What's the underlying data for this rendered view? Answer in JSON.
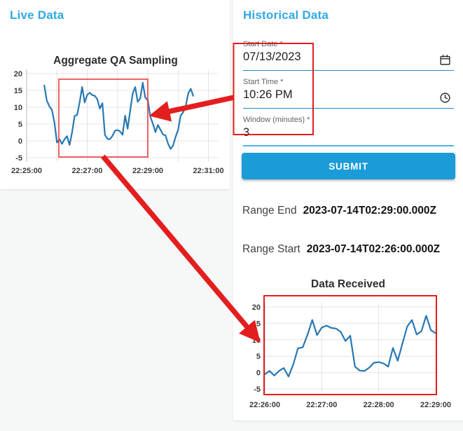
{
  "colors": {
    "accent_blue": "#2fa9e6",
    "line_blue": "#2878b4",
    "annotation_red": "#e31e1e",
    "submit_bg": "#1b9cd8",
    "underline_blue": "#1f87c9",
    "underline_light_blue": "#4db5e8"
  },
  "live_panel": {
    "title": "Live Data",
    "chart_title": "Aggregate QA Sampling"
  },
  "historical_panel": {
    "title": "Historical Data",
    "fields": [
      {
        "label": "Start Date *",
        "value": "07/13/2023",
        "icon": "calendar-icon"
      },
      {
        "label": "Start Time *",
        "value": "10:26 PM",
        "icon": "clock-icon"
      },
      {
        "label": "Window (minutes) *",
        "value": "3",
        "icon": null
      }
    ],
    "submit_label": "SUBMIT",
    "range_end_label": "Range End",
    "range_end_value": "2023-07-14T02:29:00.000Z",
    "range_start_label": "Range Start",
    "range_start_value": "2023-07-14T02:26:00.000Z",
    "chart_title": "Data Received"
  },
  "chart_data": [
    {
      "type": "line",
      "title": "Aggregate QA Sampling",
      "series_name": "live-aggregate-qa-sampling",
      "x_ticks": [
        {
          "seconds": 0,
          "label": "22:25:00"
        },
        {
          "seconds": 120,
          "label": "22:27:00"
        },
        {
          "seconds": 240,
          "label": "22:29:00"
        },
        {
          "seconds": 360,
          "label": "22:31:00"
        }
      ],
      "xlim_seconds": [
        0,
        380
      ],
      "y_ticks": [
        -5,
        0,
        5,
        10,
        15,
        20
      ],
      "ylim": [
        -5,
        20
      ],
      "grid": true,
      "legend": false,
      "x_start_seconds": 35,
      "x_step_seconds": 5,
      "values": [
        16.5,
        12,
        10.3,
        9.2,
        5.5,
        -0.5,
        0.5,
        -0.9,
        0.5,
        1.4,
        -1.2,
        2.5,
        7.4,
        7.7,
        11.5,
        16,
        11.4,
        13.7,
        14.3,
        13.6,
        13.4,
        12.4,
        9.6,
        11.2,
        1.8,
        0.6,
        0.5,
        1.5,
        3,
        3.2,
        2.8,
        1.8,
        7.5,
        3.6,
        8.9,
        14,
        16,
        11.6,
        12.6,
        17.3,
        12.9,
        12,
        7.1,
        5.1,
        2.6,
        4.7,
        3.3,
        1.9,
        1.6,
        -0.8,
        -2.4,
        -1.4,
        1.2,
        3.3,
        7.5,
        8.5,
        10.3,
        14.1,
        15.5,
        13.4
      ]
    },
    {
      "type": "line",
      "title": "Data Received",
      "series_name": "historical-data-received",
      "x_ticks": [
        {
          "seconds": 60,
          "label": "22:26:00"
        },
        {
          "seconds": 120,
          "label": "22:27:00"
        },
        {
          "seconds": 180,
          "label": "22:28:00"
        },
        {
          "seconds": 240,
          "label": "22:29:00"
        }
      ],
      "xlim_seconds": [
        60,
        240
      ],
      "y_ticks": [
        -5,
        0,
        5,
        10,
        15,
        20
      ],
      "ylim": [
        -5,
        20
      ],
      "grid": true,
      "legend": false,
      "x_start_seconds": 60,
      "x_step_seconds": 5,
      "values": [
        -0.5,
        0.5,
        -0.9,
        0.5,
        1.4,
        -1.2,
        2.5,
        7.4,
        7.7,
        11.5,
        16,
        11.4,
        13.7,
        14.3,
        13.6,
        13.4,
        12.4,
        9.6,
        11.2,
        1.8,
        0.6,
        0.5,
        1.5,
        3,
        3.2,
        2.8,
        1.8,
        7.5,
        3.6,
        8.9,
        14,
        16,
        11.6,
        12.6,
        17.3,
        12.9,
        12
      ]
    }
  ]
}
